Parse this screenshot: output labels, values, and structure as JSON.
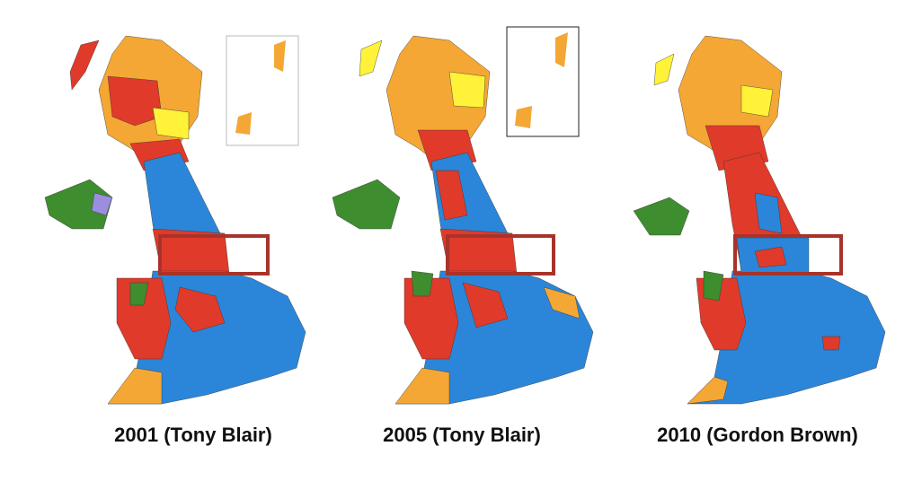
{
  "maps": [
    {
      "label": "2001 (Tony Blair)"
    },
    {
      "label": "2005 (Tony Blair)"
    },
    {
      "label": "2010 (Gordon Brown)"
    }
  ]
}
